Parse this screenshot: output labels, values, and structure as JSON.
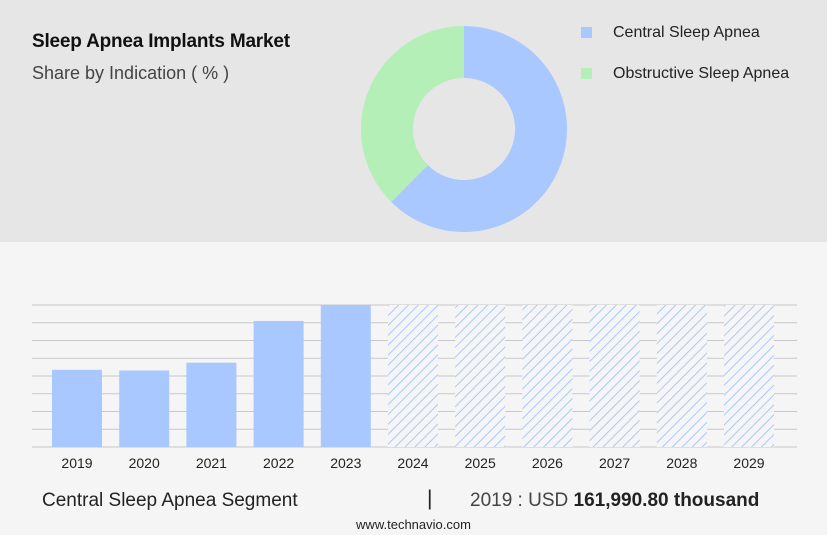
{
  "header": {
    "title": "Sleep Apnea Implants Market",
    "subtitle": "Share by Indication ( % )"
  },
  "legend": [
    {
      "label": "Central Sleep Apnea",
      "color": "#a9c8ff"
    },
    {
      "label": "Obstructive Sleep Apnea",
      "color": "#b5efb8"
    }
  ],
  "footer": {
    "segment": "Central Sleep Apnea Segment",
    "separator": "|",
    "value_prefix": "2019 : USD ",
    "value_bold": "161,990.80 thousand",
    "website": "www.technavio.com"
  },
  "chart_data": [
    {
      "type": "pie",
      "variant": "donut",
      "labels": [
        "Central Sleep Apnea",
        "Obstructive Sleep Apnea"
      ],
      "values": [
        62.5,
        37.5
      ],
      "colors": [
        "#a9c8ff",
        "#b5efb8"
      ]
    },
    {
      "type": "bar",
      "categories": [
        "2019",
        "2020",
        "2021",
        "2022",
        "2023",
        "2024",
        "2025",
        "2026",
        "2027",
        "2028",
        "2029"
      ],
      "values": [
        162.0,
        160.5,
        177.0,
        264.5,
        298.0,
        298.0,
        298.0,
        298.0,
        298.0,
        298.0,
        298.0
      ],
      "forecast_from": "2024",
      "bar_color": "#a9c8ff",
      "grid": true,
      "ylim": [
        0,
        298
      ]
    }
  ]
}
